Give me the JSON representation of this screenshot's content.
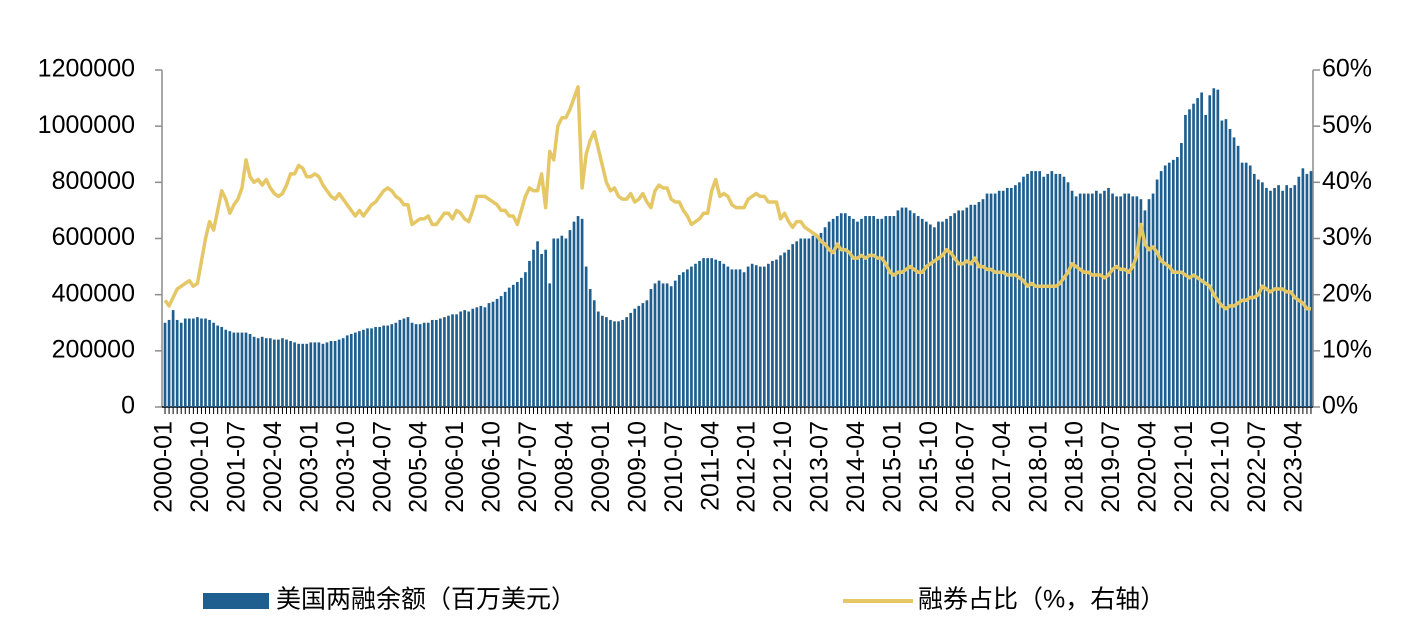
{
  "chart_data": {
    "type": "bar",
    "categories": [
      "2000-01",
      null,
      null,
      null,
      null,
      null,
      null,
      null,
      null,
      "2000-10",
      null,
      null,
      null,
      null,
      null,
      null,
      null,
      null,
      "2001-07",
      null,
      null,
      null,
      null,
      null,
      null,
      null,
      null,
      "2002-04",
      null,
      null,
      null,
      null,
      null,
      null,
      null,
      null,
      "2003-01",
      null,
      null,
      null,
      null,
      null,
      null,
      null,
      null,
      "2003-10",
      null,
      null,
      null,
      null,
      null,
      null,
      null,
      null,
      "2004-07",
      null,
      null,
      null,
      null,
      null,
      null,
      null,
      null,
      "2005-04",
      null,
      null,
      null,
      null,
      null,
      null,
      null,
      null,
      "2006-01",
      null,
      null,
      null,
      null,
      null,
      null,
      null,
      null,
      "2006-10",
      null,
      null,
      null,
      null,
      null,
      null,
      null,
      null,
      "2007-07",
      null,
      null,
      null,
      null,
      null,
      null,
      null,
      null,
      "2008-04",
      null,
      null,
      null,
      null,
      null,
      null,
      null,
      null,
      "2009-01",
      null,
      null,
      null,
      null,
      null,
      null,
      null,
      null,
      "2009-10",
      null,
      null,
      null,
      null,
      null,
      null,
      null,
      null,
      "2010-07",
      null,
      null,
      null,
      null,
      null,
      null,
      null,
      null,
      "2011-04",
      null,
      null,
      null,
      null,
      null,
      null,
      null,
      null,
      "2012-01",
      null,
      null,
      null,
      null,
      null,
      null,
      null,
      null,
      "2012-10",
      null,
      null,
      null,
      null,
      null,
      null,
      null,
      null,
      "2013-07",
      null,
      null,
      null,
      null,
      null,
      null,
      null,
      null,
      "2014-04",
      null,
      null,
      null,
      null,
      null,
      null,
      null,
      null,
      "2015-01",
      null,
      null,
      null,
      null,
      null,
      null,
      null,
      null,
      "2015-10",
      null,
      null,
      null,
      null,
      null,
      null,
      null,
      null,
      "2016-07",
      null,
      null,
      null,
      null,
      null,
      null,
      null,
      null,
      "2017-04",
      null,
      null,
      null,
      null,
      null,
      null,
      null,
      null,
      "2018-01",
      null,
      null,
      null,
      null,
      null,
      null,
      null,
      null,
      "2018-10",
      null,
      null,
      null,
      null,
      null,
      null,
      null,
      null,
      "2019-07",
      null,
      null,
      null,
      null,
      null,
      null,
      null,
      null,
      "2020-04",
      null,
      null,
      null,
      null,
      null,
      null,
      null,
      null,
      "2021-01",
      null,
      null,
      null,
      null,
      null,
      null,
      null,
      null,
      "2021-10",
      null,
      null,
      null,
      null,
      null,
      null,
      null,
      null,
      "2022-07",
      null,
      null,
      null,
      null,
      null,
      null,
      null,
      null,
      "2023-04",
      null,
      null,
      null,
      null
    ],
    "series": [
      {
        "name": "美国两融余额（百万美元）",
        "color": "#1f5f8f",
        "values": [
          300000,
          310000,
          345000,
          310000,
          300000,
          315000,
          315000,
          315000,
          320000,
          315000,
          315000,
          310000,
          300000,
          290000,
          285000,
          275000,
          270000,
          265000,
          265000,
          265000,
          265000,
          260000,
          250000,
          245000,
          250000,
          245000,
          245000,
          240000,
          240000,
          245000,
          240000,
          235000,
          230000,
          225000,
          225000,
          225000,
          230000,
          230000,
          230000,
          225000,
          230000,
          235000,
          235000,
          240000,
          245000,
          255000,
          260000,
          265000,
          270000,
          275000,
          280000,
          280000,
          285000,
          285000,
          290000,
          290000,
          295000,
          300000,
          310000,
          315000,
          320000,
          300000,
          295000,
          295000,
          300000,
          300000,
          310000,
          310000,
          315000,
          320000,
          325000,
          330000,
          330000,
          340000,
          345000,
          340000,
          350000,
          355000,
          360000,
          355000,
          370000,
          375000,
          385000,
          395000,
          410000,
          425000,
          435000,
          445000,
          460000,
          480000,
          520000,
          560000,
          590000,
          545000,
          560000,
          440000,
          600000,
          600000,
          610000,
          600000,
          630000,
          660000,
          680000,
          670000,
          500000,
          420000,
          380000,
          340000,
          325000,
          320000,
          310000,
          305000,
          305000,
          310000,
          320000,
          335000,
          350000,
          360000,
          370000,
          380000,
          420000,
          440000,
          450000,
          440000,
          440000,
          430000,
          450000,
          470000,
          480000,
          490000,
          500000,
          510000,
          520000,
          530000,
          530000,
          530000,
          525000,
          520000,
          510000,
          500000,
          490000,
          490000,
          490000,
          480000,
          500000,
          510000,
          505000,
          500000,
          500000,
          510000,
          520000,
          525000,
          540000,
          550000,
          560000,
          580000,
          590000,
          600000,
          600000,
          600000,
          610000,
          610000,
          620000,
          640000,
          660000,
          670000,
          680000,
          690000,
          690000,
          680000,
          670000,
          660000,
          670000,
          680000,
          680000,
          680000,
          670000,
          670000,
          680000,
          680000,
          680000,
          700000,
          710000,
          710000,
          700000,
          690000,
          680000,
          670000,
          660000,
          650000,
          640000,
          660000,
          660000,
          670000,
          680000,
          690000,
          700000,
          700000,
          710000,
          720000,
          720000,
          730000,
          740000,
          760000,
          760000,
          760000,
          770000,
          770000,
          780000,
          780000,
          790000,
          800000,
          820000,
          830000,
          840000,
          840000,
          840000,
          820000,
          830000,
          840000,
          830000,
          830000,
          820000,
          800000,
          770000,
          750000,
          760000,
          760000,
          760000,
          760000,
          770000,
          760000,
          770000,
          780000,
          760000,
          750000,
          750000,
          760000,
          760000,
          750000,
          750000,
          740000,
          700000,
          740000,
          760000,
          810000,
          840000,
          860000,
          870000,
          880000,
          890000,
          940000,
          1040000,
          1060000,
          1080000,
          1100000,
          1120000,
          1040000,
          1110000,
          1135000,
          1130000,
          1020000,
          1025000,
          990000,
          960000,
          930000,
          870000,
          870000,
          860000,
          830000,
          810000,
          800000,
          780000,
          770000,
          780000,
          790000,
          770000,
          790000,
          780000,
          790000,
          820000,
          850000,
          830000,
          840000
        ]
      },
      {
        "name": "融券占比（%，右轴）",
        "color": "#e5c766",
        "type": "line",
        "axis": "y2",
        "values": [
          19,
          18,
          19.5,
          21,
          21.5,
          22,
          22.5,
          21.5,
          22,
          26,
          30,
          33,
          31.5,
          35,
          38.5,
          37,
          34.5,
          36,
          37,
          39,
          44,
          41,
          40,
          40.5,
          39.5,
          40.5,
          39,
          38,
          37.5,
          38,
          39.5,
          41.5,
          41.5,
          43,
          42.5,
          41,
          41,
          41.5,
          41,
          39.5,
          38.5,
          37.5,
          37,
          38,
          37,
          36,
          35,
          34,
          35,
          34,
          35,
          36,
          36.5,
          37.5,
          38.5,
          39,
          38.5,
          37.5,
          37,
          36,
          36,
          32.5,
          33,
          33.5,
          33.5,
          34,
          32.5,
          32.5,
          33.5,
          34.5,
          34.5,
          33.5,
          35,
          34.5,
          33.5,
          33,
          35,
          37.5,
          37.5,
          37.5,
          37,
          36.5,
          36,
          35,
          35,
          34,
          34,
          32.5,
          35,
          37.5,
          39,
          38.5,
          38.5,
          41.5,
          35.5,
          45.5,
          44,
          50,
          51.5,
          51.5,
          53,
          55,
          57,
          39,
          45,
          47.5,
          49,
          46,
          43,
          40,
          38.5,
          39,
          37.5,
          37,
          37,
          38,
          36.5,
          37,
          38,
          36.5,
          35.5,
          38.5,
          39.5,
          39,
          39,
          37,
          36.5,
          36.5,
          35,
          34,
          32.5,
          33,
          33.5,
          34.5,
          34.5,
          38.5,
          40.5,
          37.5,
          38,
          37.5,
          36,
          35.5,
          35.5,
          35.5,
          37,
          37.5,
          38,
          37.5,
          37.5,
          36.5,
          36.5,
          36.5,
          33.5,
          34.5,
          33,
          32,
          33,
          33,
          32,
          31.5,
          31,
          30.5,
          29.5,
          29,
          28,
          27.5,
          29,
          28,
          28,
          27.5,
          26.5,
          26.5,
          27,
          26.5,
          27,
          27,
          26.5,
          26.5,
          25.5,
          24,
          23.5,
          24,
          24,
          24.5,
          25,
          24.5,
          24,
          24,
          25,
          25.5,
          26,
          26.5,
          27,
          28,
          27.5,
          26.5,
          25.5,
          25.5,
          26,
          25.5,
          26.5,
          25,
          25,
          24.5,
          24.5,
          24,
          24,
          24,
          23.5,
          23.5,
          23.5,
          23,
          22.5,
          21.5,
          22,
          21.5,
          21.5,
          21.5,
          21.5,
          21.5,
          21.5,
          22,
          23,
          24,
          25.5,
          25,
          24.5,
          24,
          24,
          23.5,
          23.5,
          23.5,
          23,
          23.5,
          24.5,
          25,
          24.5,
          24.5,
          24,
          25,
          27,
          32.5,
          29,
          28,
          28.5,
          27.5,
          26,
          25.5,
          25,
          24,
          24,
          24,
          23.5,
          23,
          23.5,
          23,
          22.5,
          22,
          21.5,
          20,
          19,
          18,
          17.5,
          18,
          18,
          18.5,
          19,
          19,
          19.5,
          19.5,
          20,
          21.5,
          21,
          20.5,
          21,
          21,
          21,
          20.5,
          20.5,
          19.5,
          19,
          18.5,
          17.5,
          17.5
        ]
      }
    ],
    "ylim": [
      0,
      1200000
    ],
    "yticks": [
      0,
      200000,
      400000,
      600000,
      800000,
      1000000,
      1200000
    ],
    "y2lim": [
      0,
      60
    ],
    "y2ticks": [
      {
        "value": 0,
        "label": "0%"
      },
      {
        "value": 10,
        "label": "10%"
      },
      {
        "value": 20,
        "label": "20%"
      },
      {
        "value": 30,
        "label": "30%"
      },
      {
        "value": 40,
        "label": "40%"
      },
      {
        "value": 50,
        "label": "50%"
      },
      {
        "value": 60,
        "label": "60%"
      }
    ],
    "legend": "bottom"
  }
}
